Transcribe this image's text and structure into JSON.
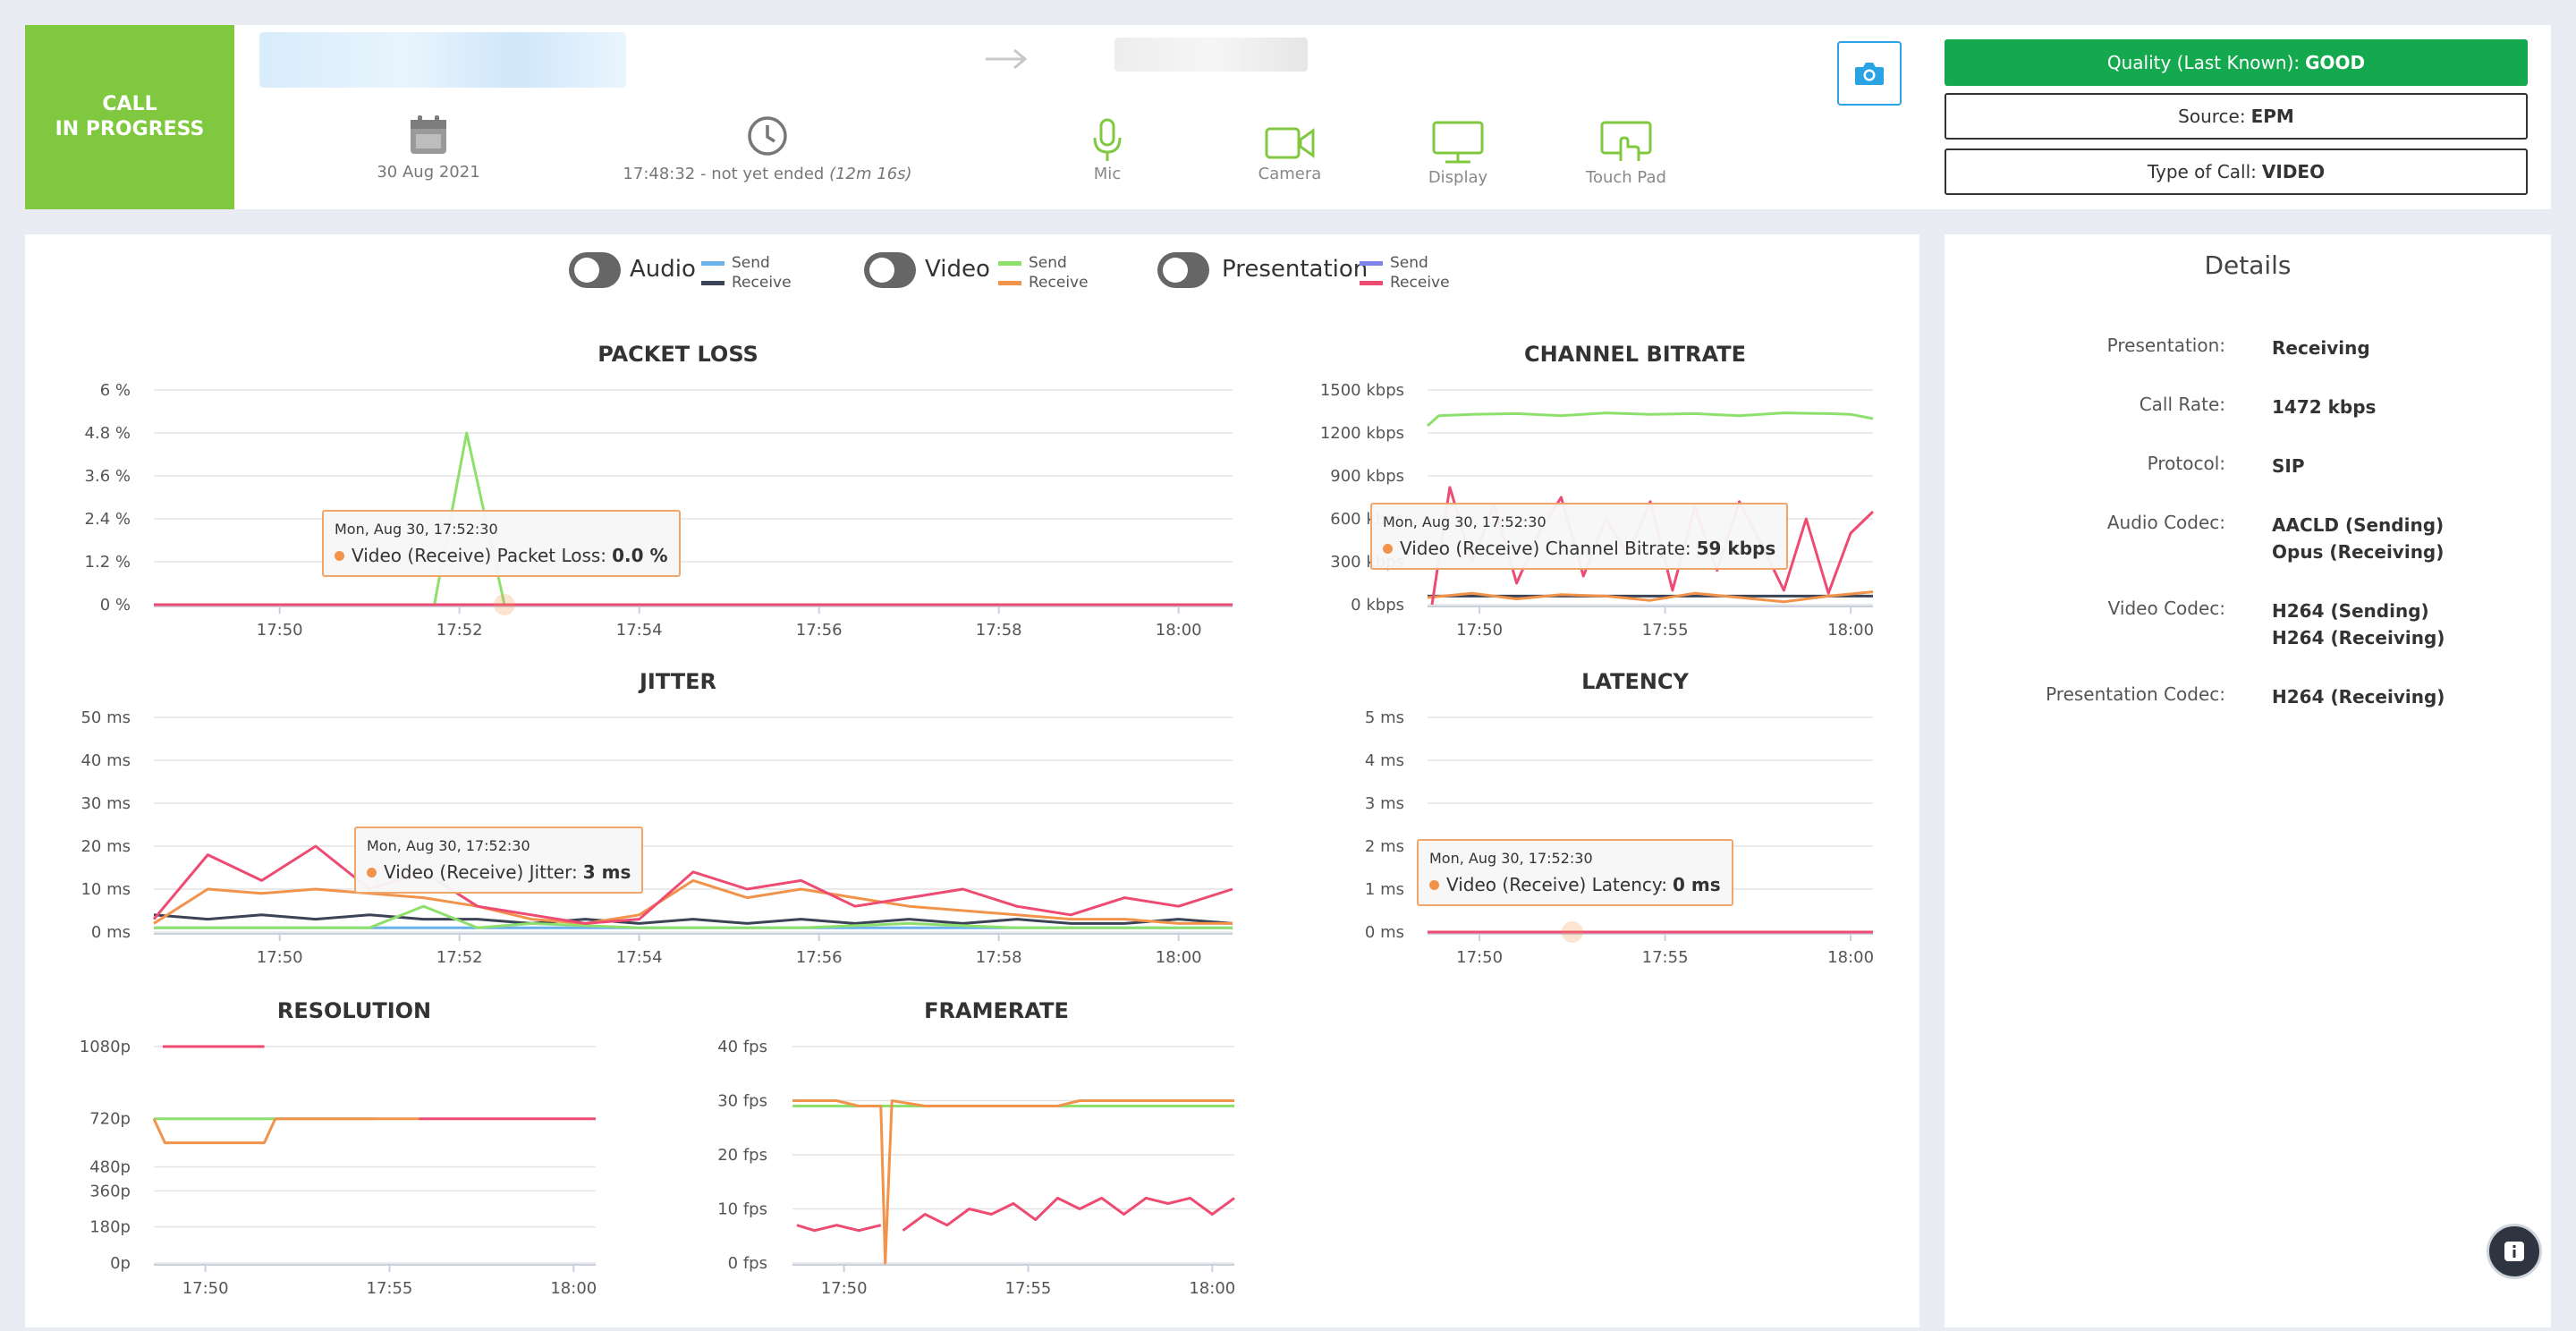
{
  "header": {
    "status_line1": "CALL",
    "status_line2": "IN PROGRESS",
    "date": "30 Aug 2021",
    "time_start": "17:48:32 - not yet ended",
    "time_duration": "(12m 16s)",
    "devices": [
      {
        "label": "Mic",
        "icon": "mic-icon",
        "color": "#80c83f"
      },
      {
        "label": "Camera",
        "icon": "camera-icon",
        "color": "#80c83f"
      },
      {
        "label": "Display",
        "icon": "display-icon",
        "color": "#80c83f"
      },
      {
        "label": "Touch Pad",
        "icon": "touchpad-icon",
        "color": "#80c83f"
      }
    ],
    "quality_label": "Quality (Last Known):",
    "quality_value": "GOOD",
    "source_label": "Source:",
    "source_value": "EPM",
    "call_type_label": "Type of Call:",
    "call_type_value": "VIDEO"
  },
  "legend": {
    "groups": [
      {
        "label": "Audio",
        "send_color": "#6bb1ea",
        "receive_color": "#3b4357"
      },
      {
        "label": "Video",
        "send_color": "#8ee06d",
        "receive_color": "#f1934b"
      },
      {
        "label": "Presentation",
        "send_color": "#7d86e8",
        "receive_color": "#ee4b72"
      }
    ],
    "send_label": "Send",
    "receive_label": "Receive"
  },
  "details": {
    "title": "Details",
    "rows": [
      {
        "label": "Presentation:",
        "values": [
          "Receiving"
        ]
      },
      {
        "label": "Call Rate:",
        "values": [
          "1472 kbps"
        ]
      },
      {
        "label": "Protocol:",
        "values": [
          "SIP"
        ]
      },
      {
        "label": "Audio Codec:",
        "values": [
          "AACLD (Sending)",
          "Opus (Receiving)"
        ]
      },
      {
        "label": "Video Codec:",
        "values": [
          "H264 (Sending)",
          "H264 (Receiving)"
        ]
      },
      {
        "label": "Presentation Codec:",
        "values": [
          "H264 (Receiving)"
        ]
      }
    ]
  },
  "tooltips": {
    "packet_loss": {
      "time": "Mon, Aug 30, 17:52:30",
      "label": "Video (Receive) Packet Loss:",
      "value": "0.0 %"
    },
    "bitrate": {
      "time": "Mon, Aug 30, 17:52:30",
      "label": "Video (Receive) Channel Bitrate:",
      "value": "59 kbps"
    },
    "jitter": {
      "time": "Mon, Aug 30, 17:52:30",
      "label": "Video (Receive) Jitter:",
      "value": "3 ms"
    },
    "latency": {
      "time": "Mon, Aug 30, 17:52:30",
      "label": "Video (Receive) Latency:",
      "value": "0 ms"
    }
  },
  "chart_data": [
    {
      "id": "packet_loss",
      "type": "line",
      "title": "PACKET LOSS",
      "x_ticks": [
        "17:50",
        "17:52",
        "17:54",
        "17:56",
        "17:58",
        "18:00"
      ],
      "y_ticks": [
        "6 %",
        "4.8 %",
        "3.6 %",
        "2.4 %",
        "1.2 %",
        "0 %"
      ],
      "xlim": [
        17.81,
        18.01
      ],
      "ylim": [
        0,
        6
      ],
      "series": [
        {
          "color": "#8ee06d",
          "x": [
            17.81,
            17.855,
            17.862,
            17.868,
            17.875,
            17.88,
            17.95,
            18.01
          ],
          "y": [
            0,
            0,
            0,
            4.8,
            0,
            0,
            0,
            0
          ]
        },
        {
          "color": "#ee4b72",
          "x": [
            17.81,
            18.01
          ],
          "y": [
            0,
            0
          ]
        }
      ]
    },
    {
      "id": "bitrate",
      "type": "line",
      "title": "CHANNEL BITRATE",
      "x_ticks": [
        "17:50",
        "17:55",
        "18:00"
      ],
      "y_ticks": [
        "1500 kbps",
        "1200 kbps",
        "900 kbps",
        "600 kbps",
        "300 kbps",
        "0 kbps"
      ],
      "xlim": [
        17.81,
        18.01
      ],
      "ylim": [
        0,
        1500
      ],
      "series": [
        {
          "color": "#8ee06d",
          "x": [
            17.81,
            17.815,
            17.83,
            17.85,
            17.87,
            17.89,
            17.91,
            17.93,
            17.95,
            17.97,
            17.99,
            18.0,
            18.01
          ],
          "y": [
            1250,
            1320,
            1330,
            1335,
            1320,
            1340,
            1330,
            1335,
            1320,
            1340,
            1335,
            1330,
            1300
          ]
        },
        {
          "color": "#3b4357",
          "x": [
            17.81,
            18.01
          ],
          "y": [
            60,
            60
          ]
        },
        {
          "color": "#f1934b",
          "x": [
            17.81,
            17.83,
            17.85,
            17.87,
            17.89,
            17.91,
            17.93,
            17.95,
            17.97,
            17.99,
            18.01
          ],
          "y": [
            50,
            80,
            40,
            70,
            60,
            30,
            80,
            50,
            20,
            60,
            90
          ]
        },
        {
          "color": "#ee4b72",
          "x": [
            17.812,
            17.82,
            17.83,
            17.84,
            17.85,
            17.86,
            17.87,
            17.88,
            17.89,
            17.9,
            17.91,
            17.92,
            17.93,
            17.94,
            17.95,
            17.96,
            17.97,
            17.98,
            17.99,
            18.0,
            18.01
          ],
          "y": [
            0,
            820,
            300,
            700,
            150,
            500,
            750,
            200,
            600,
            350,
            720,
            100,
            680,
            240,
            720,
            420,
            100,
            600,
            80,
            500,
            650
          ]
        }
      ]
    },
    {
      "id": "jitter",
      "type": "line",
      "title": "JITTER",
      "x_ticks": [
        "17:50",
        "17:52",
        "17:54",
        "17:56",
        "17:58",
        "18:00"
      ],
      "y_ticks": [
        "50 ms",
        "40 ms",
        "30 ms",
        "20 ms",
        "10 ms",
        "0 ms"
      ],
      "xlim": [
        17.81,
        18.01
      ],
      "ylim": [
        0,
        50
      ],
      "series": [
        {
          "color": "#6bb1ea",
          "x": [
            17.81,
            17.85,
            17.9,
            17.95,
            18.01
          ],
          "y": [
            1,
            1,
            1,
            1,
            1
          ]
        },
        {
          "color": "#3b4357",
          "x": [
            17.81,
            17.82,
            17.83,
            17.84,
            17.85,
            17.86,
            17.87,
            17.88,
            17.89,
            17.9,
            17.91,
            17.92,
            17.93,
            17.94,
            17.95,
            17.96,
            17.97,
            17.98,
            17.99,
            18.0,
            18.01
          ],
          "y": [
            4,
            3,
            4,
            3,
            4,
            3,
            3,
            2,
            3,
            2,
            3,
            2,
            3,
            2,
            3,
            2,
            3,
            2,
            2,
            3,
            2
          ]
        },
        {
          "color": "#8ee06d",
          "x": [
            17.81,
            17.85,
            17.86,
            17.87,
            17.88,
            17.9,
            17.93,
            17.95,
            17.97,
            17.99,
            18.01
          ],
          "y": [
            1,
            1,
            6,
            1,
            2,
            1,
            1,
            2,
            1,
            1,
            1
          ]
        },
        {
          "color": "#f1934b",
          "x": [
            17.81,
            17.82,
            17.83,
            17.84,
            17.85,
            17.86,
            17.87,
            17.88,
            17.89,
            17.9,
            17.91,
            17.92,
            17.93,
            17.94,
            17.95,
            17.96,
            17.97,
            17.98,
            17.99,
            18.0,
            18.01
          ],
          "y": [
            2,
            10,
            9,
            10,
            9,
            8,
            6,
            3,
            2,
            4,
            12,
            8,
            10,
            8,
            6,
            5,
            4,
            3,
            3,
            2,
            2
          ]
        },
        {
          "color": "#ee4b72",
          "x": [
            17.81,
            17.82,
            17.83,
            17.84,
            17.85,
            17.86,
            17.87,
            17.88,
            17.89,
            17.9,
            17.91,
            17.92,
            17.93,
            17.94,
            17.95,
            17.96,
            17.97,
            17.98,
            17.99,
            18.0,
            18.01
          ],
          "y": [
            3,
            18,
            12,
            20,
            10,
            14,
            6,
            4,
            2,
            3,
            14,
            10,
            12,
            6,
            8,
            10,
            6,
            4,
            8,
            6,
            10
          ]
        }
      ]
    },
    {
      "id": "latency",
      "type": "line",
      "title": "LATENCY",
      "x_ticks": [
        "17:50",
        "17:55",
        "18:00"
      ],
      "y_ticks": [
        "5 ms",
        "4 ms",
        "3 ms",
        "2 ms",
        "1 ms",
        "0 ms"
      ],
      "xlim": [
        17.81,
        18.01
      ],
      "ylim": [
        0,
        5
      ],
      "series": [
        {
          "color": "#ee4b72",
          "x": [
            17.81,
            18.01
          ],
          "y": [
            0,
            0
          ]
        }
      ]
    },
    {
      "id": "resolution",
      "type": "line",
      "title": "RESOLUTION",
      "x_ticks": [
        "17:50",
        "17:55",
        "18:00"
      ],
      "y_ticks": [
        "1080p",
        "720p",
        "480p",
        "360p",
        "180p",
        "0p"
      ],
      "xlim": [
        17.81,
        18.01
      ],
      "ylim": [
        0,
        1080
      ],
      "series": [
        {
          "color": "#ee4b72",
          "x": [
            17.814,
            17.86
          ],
          "y": [
            1080,
            1080
          ]
        },
        {
          "color": "#8ee06d",
          "x": [
            17.81,
            17.91
          ],
          "y": [
            720,
            720
          ]
        },
        {
          "color": "#f1934b",
          "x": [
            17.81,
            17.815,
            17.86,
            17.865,
            17.93
          ],
          "y": [
            720,
            600,
            600,
            720,
            720
          ]
        },
        {
          "color": "#ee4b72",
          "x": [
            17.93,
            18.01
          ],
          "y": [
            720,
            720
          ]
        }
      ]
    },
    {
      "id": "framerate",
      "type": "line",
      "title": "FRAMERATE",
      "x_ticks": [
        "17:50",
        "17:55",
        "18:00"
      ],
      "y_ticks": [
        "40 fps",
        "30 fps",
        "20 fps",
        "10 fps",
        "0 fps"
      ],
      "xlim": [
        17.81,
        18.01
      ],
      "ylim": [
        0,
        40
      ],
      "series": [
        {
          "color": "#8ee06d",
          "x": [
            17.81,
            18.01
          ],
          "y": [
            29,
            29
          ]
        },
        {
          "color": "#f1934b",
          "x": [
            17.81,
            17.83,
            17.84,
            17.85,
            17.852,
            17.855,
            17.87,
            17.88,
            17.93,
            17.94,
            18.01
          ],
          "y": [
            30,
            30,
            29,
            29,
            0,
            30,
            29,
            29,
            29,
            30,
            30
          ]
        },
        {
          "color": "#ee4b72",
          "x": [
            17.812,
            17.82,
            17.83,
            17.84,
            17.85
          ],
          "y": [
            7,
            6,
            7,
            6,
            7
          ]
        },
        {
          "color": "#ee4b72",
          "x": [
            17.86,
            17.87,
            17.88,
            17.89,
            17.9,
            17.91,
            17.92,
            17.93,
            17.94,
            17.95,
            17.96,
            17.97,
            17.98,
            17.99,
            18.0,
            18.01
          ],
          "y": [
            6,
            9,
            7,
            10,
            9,
            11,
            8,
            12,
            10,
            12,
            9,
            12,
            11,
            12,
            9,
            12
          ]
        }
      ]
    }
  ]
}
